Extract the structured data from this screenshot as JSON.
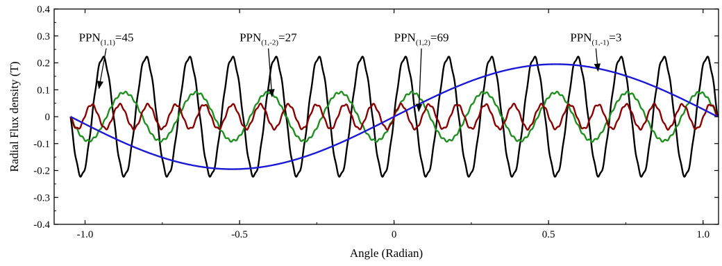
{
  "chart_data": {
    "type": "line",
    "xlabel": "Angle (Radian)",
    "ylabel": "Radial Flux density (T)",
    "xlim": [
      -1.1,
      1.05
    ],
    "ylim": [
      -0.4,
      0.4
    ],
    "x_ticks": [
      -1.0,
      -0.5,
      0,
      0.5,
      1.0
    ],
    "x_tick_labels": [
      "-1.0",
      "-0.5",
      "0",
      "0.5",
      "1.0"
    ],
    "y_ticks": [
      -0.4,
      -0.3,
      -0.2,
      -0.1,
      0,
      0.1,
      0.2,
      0.3,
      0.4
    ],
    "y_tick_labels": [
      "-0.4",
      "-0.3",
      "-0.2",
      "-0.1",
      "0",
      "0.1",
      "0.2",
      "0.3",
      "0.4"
    ],
    "grid": false,
    "series": [
      {
        "name": "PPN(1,1)=45",
        "color": "#000000",
        "x_range": [
          -1.047,
          1.047
        ],
        "amplitude": 0.22,
        "periods": 15,
        "ripple_amplitude": 0.006,
        "ripple_periods": 120
      },
      {
        "name": "PPN(1,-2)=27",
        "color": "#1f8f1f",
        "x_range": [
          -1.047,
          1.047
        ],
        "amplitude": 0.09,
        "periods": 9,
        "ripple_amplitude": 0.004,
        "ripple_periods": 120
      },
      {
        "name": "PPN(1,2)=69",
        "color": "#8b0000",
        "x_range": [
          -1.047,
          1.047
        ],
        "amplitude": 0.045,
        "periods": 23,
        "ripple_amplitude": 0.004,
        "ripple_periods": 120
      },
      {
        "name": "PPN(1,-1)=3",
        "color": "#1a1ad6",
        "x_range": [
          -1.047,
          1.047
        ],
        "amplitude": 0.195,
        "periods": 1,
        "ripple_amplitude": 0,
        "ripple_periods": 0
      }
    ],
    "annotations": [
      {
        "base": "PPN",
        "sub": "(1,1)",
        "value": "=45",
        "series": 0,
        "text_at": [
          -1.02,
          0.295
        ],
        "arrow_to": [
          -0.955,
          0.105
        ]
      },
      {
        "base": "PPN",
        "sub": "(1,-2)",
        "value": "=27",
        "series": 1,
        "text_at": [
          -0.5,
          0.295
        ],
        "arrow_to": [
          -0.395,
          0.075
        ]
      },
      {
        "base": "PPN",
        "sub": "(1,2)",
        "value": "=69",
        "series": 2,
        "text_at": [
          0.0,
          0.295
        ],
        "arrow_to": [
          0.08,
          0.02
        ]
      },
      {
        "base": "PPN",
        "sub": "(1,-1)",
        "value": "=3",
        "series": 3,
        "text_at": [
          0.57,
          0.295
        ],
        "arrow_to": [
          0.66,
          0.17
        ]
      }
    ]
  }
}
